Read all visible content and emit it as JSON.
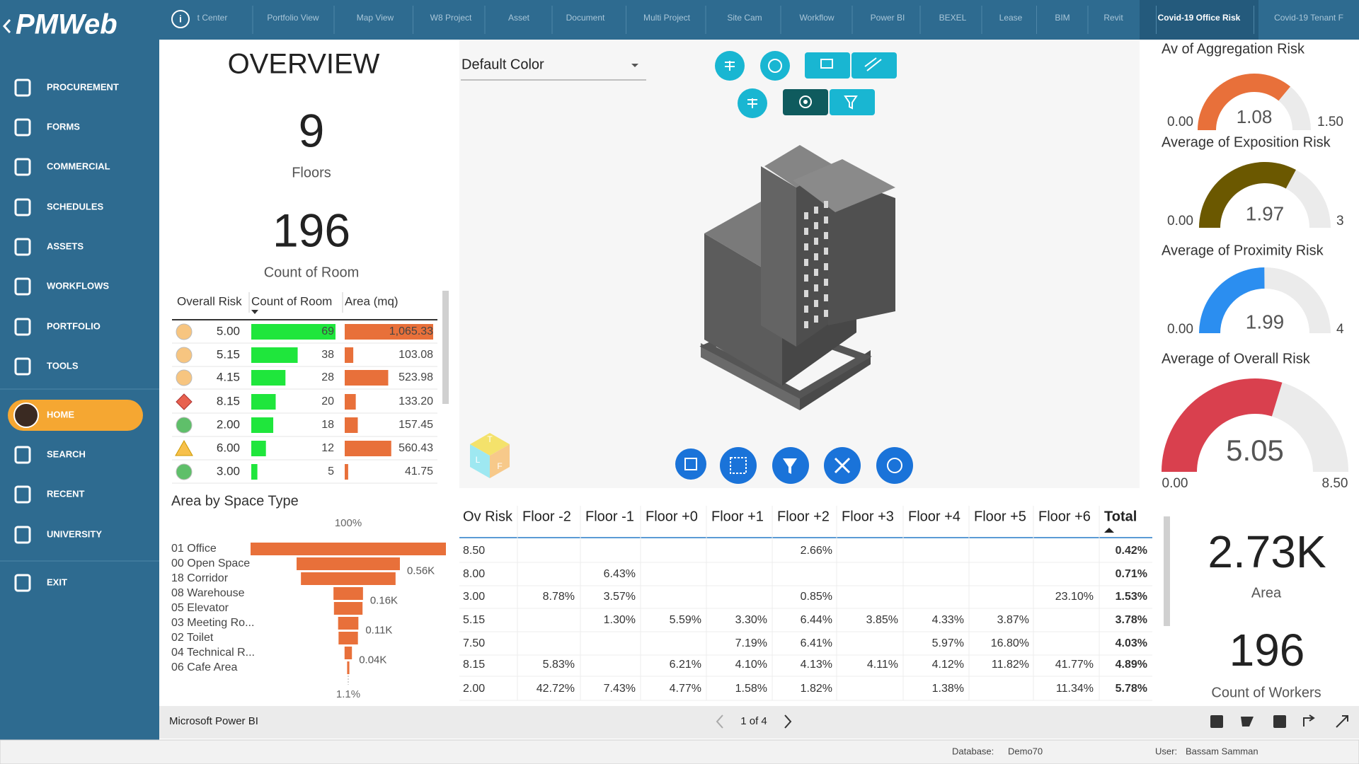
{
  "header": {
    "logo": "PMWeb",
    "tabs": [
      "t Center",
      "Portfolio View",
      "Map View",
      "W8 Project",
      "Asset",
      "Document",
      "Multi Project",
      "Site Cam",
      "Workflow",
      "Power BI",
      "BEXEL",
      "Lease",
      "BIM",
      "Revit",
      "Covid-19 Office Risk",
      "Covid-19 Tenant F"
    ],
    "active_tab": 14
  },
  "menu": [
    "PROCUREMENT",
    "FORMS",
    "COMMERCIAL",
    "SCHEDULES",
    "ASSETS",
    "WORKFLOWS",
    "PORTFOLIO",
    "TOOLS",
    "HOME",
    "SEARCH",
    "RECENT",
    "UNIVERSITY",
    "EXIT"
  ],
  "active_menu": 8,
  "overview": {
    "title": "OVERVIEW",
    "kpis": [
      {
        "value": 9,
        "label": "Floors"
      },
      {
        "value": 196,
        "label": "Count of Room"
      }
    ]
  },
  "risk_table": {
    "columns": [
      "Overall Risk",
      "Count of Room",
      "Area (mq)"
    ],
    "count_color": "#1fe63c",
    "area_color": "#e8703a",
    "rows": [
      {
        "risk": {
          "value": 5,
          "label": "5.00"
        },
        "marker": "circle",
        "marker_color": "#f7c580",
        "count": 69,
        "area": {
          "value": 1065.33,
          "label": "1,065.33"
        }
      },
      {
        "risk": 5.15,
        "marker": "circle",
        "marker_color": "#f7c580",
        "count": 38,
        "area": 103.08
      },
      {
        "risk": 4.15,
        "marker": "circle",
        "marker_color": "#f7c580",
        "count": 28,
        "area": 523.98
      },
      {
        "risk": 8.15,
        "marker": "diamond",
        "marker_color": "#e8614f",
        "count": 20,
        "area": {
          "value": 133.2,
          "label": "133.20"
        }
      },
      {
        "risk": {
          "value": 2,
          "label": "2.00"
        },
        "marker": "circle",
        "marker_color": "#5fbf6a",
        "count": 18,
        "area": 157.45
      },
      {
        "risk": {
          "value": 6,
          "label": "6.00"
        },
        "marker": "triangle",
        "marker_color": "#f7c04a",
        "count": 12,
        "area": 560.43
      },
      {
        "risk": {
          "value": 3,
          "label": "3.00"
        },
        "marker": "circle",
        "marker_color": "#5fbf6a",
        "count": 5,
        "area": 41.75
      }
    ]
  },
  "funnel": {
    "title": "Area by Space Type",
    "top_label": "100%",
    "bottom_label": "1.1%",
    "color": "#e8703a",
    "categories": [
      "01 Office",
      "00 Open Space",
      "18 Corridor",
      "08 Warehouse",
      "05 Elevator",
      "03 Meeting Ro...",
      "02 Toilet",
      "04 Technical R...",
      "06 Cafe Area"
    ],
    "values": [
      1059,
      560,
      513,
      160,
      155,
      110,
      105,
      40,
      12
    ],
    "value_labels": [
      null,
      "0.56K",
      null,
      "0.16K",
      null,
      "0.11K",
      null,
      "0.04K",
      null
    ]
  },
  "viewer": {
    "color_mode": "Default Color",
    "viewcube": [
      "T",
      "L",
      "F"
    ]
  },
  "matrix": {
    "columns": [
      "Ov Risk",
      "Floor -2",
      "Floor -1",
      "Floor +0",
      "Floor +1",
      "Floor +2",
      "Floor +3",
      "Floor +4",
      "Floor +5",
      "Floor +6",
      "Total"
    ],
    "rows": [
      [
        "8.50",
        null,
        null,
        null,
        null,
        "2.66%",
        null,
        null,
        null,
        null,
        "0.42%"
      ],
      [
        "8.00",
        null,
        "6.43%",
        null,
        null,
        null,
        null,
        null,
        null,
        null,
        "0.71%"
      ],
      [
        "3.00",
        "8.78%",
        "3.57%",
        null,
        null,
        "0.85%",
        null,
        null,
        null,
        "23.10%",
        "1.53%"
      ],
      [
        "5.15",
        null,
        "1.30%",
        "5.59%",
        "3.30%",
        "6.44%",
        "3.85%",
        "4.33%",
        "3.87%",
        null,
        "3.78%"
      ],
      [
        "7.50",
        null,
        null,
        null,
        "7.19%",
        "6.41%",
        null,
        "5.97%",
        "16.80%",
        null,
        "4.03%"
      ],
      [
        "8.15",
        "5.83%",
        null,
        "6.21%",
        "4.10%",
        "4.13%",
        "4.11%",
        "4.12%",
        "11.82%",
        "41.77%",
        "4.89%"
      ],
      [
        "2.00",
        "42.72%",
        "7.43%",
        "4.77%",
        "1.58%",
        "1.82%",
        null,
        "1.38%",
        null,
        "11.34%",
        "5.78%"
      ]
    ]
  },
  "gauges": [
    {
      "title": "Av of Aggregation Risk",
      "min": {
        "value": 0,
        "label": "0.00"
      },
      "max": {
        "value": 1.5,
        "label": "1.50"
      },
      "value": 1.08,
      "color": "#e8703a"
    },
    {
      "title": "Average of Exposition Risk",
      "min": {
        "value": 0,
        "label": "0.00"
      },
      "max": 3,
      "value": 1.97,
      "color": "#6b5800"
    },
    {
      "title": "Average of Proximity Risk",
      "min": {
        "value": 0,
        "label": "0.00"
      },
      "max": 4,
      "value": 1.99,
      "color": "#2b8ef0"
    },
    {
      "title": "Average of Overall Risk",
      "min": {
        "value": 0,
        "label": "0.00"
      },
      "max": {
        "value": 8.5,
        "label": "8.50"
      },
      "value": 5.05,
      "color": "#d9404e"
    }
  ],
  "cards": [
    {
      "value": "2.73K",
      "label": "Area"
    },
    {
      "value": 196,
      "label": "Count of Workers"
    }
  ],
  "footer": {
    "app": "Microsoft Power BI",
    "page": "1 of 4"
  },
  "status": {
    "database_label": "Database:",
    "database": "Demo70",
    "user_label": "User:",
    "user": "Bassam Samman"
  }
}
